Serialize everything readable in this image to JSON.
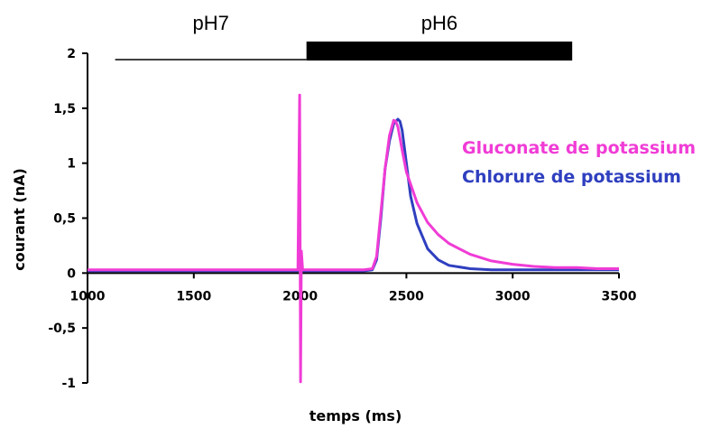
{
  "chart_data": {
    "type": "line",
    "title": "",
    "xlabel": "temps (ms)",
    "ylabel": "courant (nA)",
    "xlim": [
      1000,
      3500
    ],
    "ylim": [
      -1,
      2
    ],
    "x_ticks": [
      "1000",
      "1500",
      "2000",
      "2500",
      "3000",
      "3500"
    ],
    "y_ticks": [
      "2",
      "1,5",
      "1",
      "0,5",
      "0",
      "-0,5",
      "-1"
    ],
    "conditions": [
      {
        "label": "pH7",
        "x_start": 1130,
        "x_end": 2030,
        "style": "thin"
      },
      {
        "label": "pH6",
        "x_start": 2030,
        "x_end": 3280,
        "style": "thick"
      }
    ],
    "series": [
      {
        "name": "Gluconate de potassium",
        "color": "#f03cd6",
        "x": [
          1000,
          1500,
          1990,
          1998,
          2002,
          2006,
          2012,
          2030,
          2300,
          2340,
          2360,
          2380,
          2400,
          2420,
          2440,
          2450,
          2460,
          2480,
          2500,
          2550,
          2600,
          2650,
          2700,
          2800,
          2900,
          3000,
          3100,
          3200,
          3300,
          3400,
          3500
        ],
        "y": [
          0.03,
          0.03,
          0.03,
          1.62,
          -0.99,
          0.2,
          0.03,
          0.03,
          0.03,
          0.04,
          0.15,
          0.55,
          0.95,
          1.25,
          1.39,
          1.38,
          1.33,
          1.12,
          0.92,
          0.64,
          0.46,
          0.35,
          0.27,
          0.17,
          0.11,
          0.08,
          0.06,
          0.05,
          0.05,
          0.04,
          0.04
        ]
      },
      {
        "name": "Chlorure de potassium",
        "color": "#2f3fbf",
        "x": [
          1000,
          1500,
          1990,
          2000,
          2006,
          2030,
          2300,
          2340,
          2360,
          2380,
          2400,
          2420,
          2440,
          2460,
          2470,
          2480,
          2500,
          2520,
          2550,
          2600,
          2650,
          2700,
          2800,
          2900,
          3000,
          3100,
          3200,
          3300,
          3400,
          3500
        ],
        "y": [
          0.02,
          0.02,
          0.02,
          0.06,
          0.02,
          0.02,
          0.02,
          0.03,
          0.12,
          0.5,
          0.95,
          1.2,
          1.36,
          1.4,
          1.38,
          1.3,
          1.0,
          0.7,
          0.45,
          0.22,
          0.12,
          0.07,
          0.04,
          0.03,
          0.03,
          0.03,
          0.03,
          0.03,
          0.03,
          0.03
        ]
      }
    ],
    "legend_position": "right"
  }
}
